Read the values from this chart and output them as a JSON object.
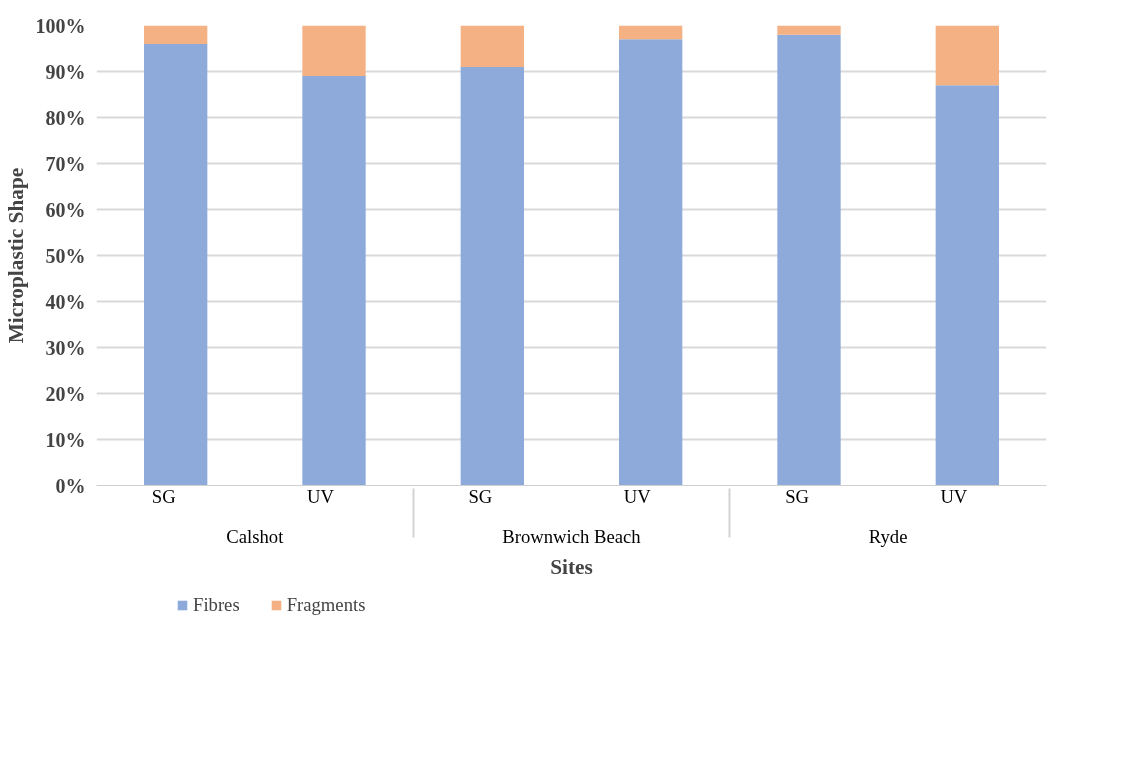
{
  "chart_data": {
    "type": "bar",
    "stacked": true,
    "xlabel": "Sites",
    "ylabel": "Microplastic Shape",
    "categories": [
      "SG",
      "UV",
      "SG",
      "UV",
      "SG",
      "UV"
    ],
    "annotations": [
      "Calshot",
      "Brownwich Beach",
      "Ryde"
    ],
    "series": [
      {
        "name": "Fibres",
        "color": "#8eaadb",
        "values": [
          96,
          89,
          91,
          97,
          98,
          87
        ]
      },
      {
        "name": "Fragments",
        "color": "#f4b183",
        "values": [
          4,
          11,
          9,
          3,
          2,
          13
        ]
      }
    ],
    "ylim": [
      0,
      100
    ],
    "yticks": [
      {
        "value": 0,
        "label": "0%"
      },
      {
        "value": 10,
        "label": "10%"
      },
      {
        "value": 20,
        "label": "20%"
      },
      {
        "value": 30,
        "label": "30%"
      },
      {
        "value": 40,
        "label": "40%"
      },
      {
        "value": 50,
        "label": "50%"
      },
      {
        "value": 60,
        "label": "60%"
      },
      {
        "value": 70,
        "label": "70%"
      },
      {
        "value": 80,
        "label": "80%"
      },
      {
        "value": 90,
        "label": "90%"
      },
      {
        "value": 100,
        "label": "100%"
      }
    ],
    "grid": "y",
    "legend": "bottom left"
  }
}
